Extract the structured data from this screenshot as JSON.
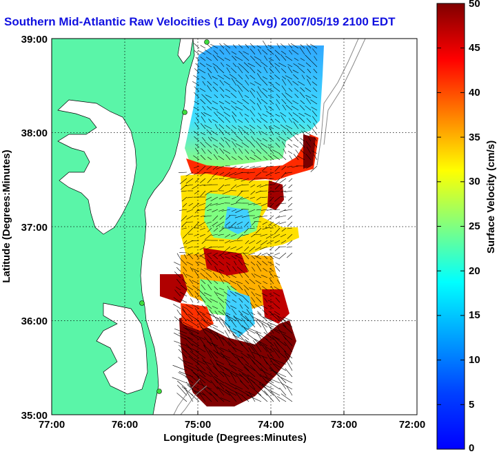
{
  "title": "Southern Mid-Atlantic Raw Velocities (1 Day Avg) 2007/05/19 2100 EDT",
  "axes": {
    "xlabel": "Longitude (Degrees:Minutes)",
    "ylabel": "Latitude (Degrees:Minutes)",
    "xticks": [
      "77:00",
      "76:00",
      "75:00",
      "74:00",
      "73:00",
      "72:00"
    ],
    "yticks": [
      "39:00",
      "38:00",
      "37:00",
      "36:00",
      "35:00"
    ],
    "xlim": [
      -77,
      -72
    ],
    "ylim": [
      35,
      39
    ],
    "grid": true
  },
  "colorbar": {
    "label": "Surface Velocity (cm/s)",
    "ticks": [
      "50",
      "45",
      "40",
      "35",
      "30",
      "25",
      "20",
      "15",
      "10",
      "5",
      "0"
    ],
    "range": [
      0,
      50
    ],
    "colormap": "jet"
  },
  "colors": {
    "land": "#5af5a8",
    "title": "#1010e0",
    "site_marker": "#3ddc3d"
  }
}
